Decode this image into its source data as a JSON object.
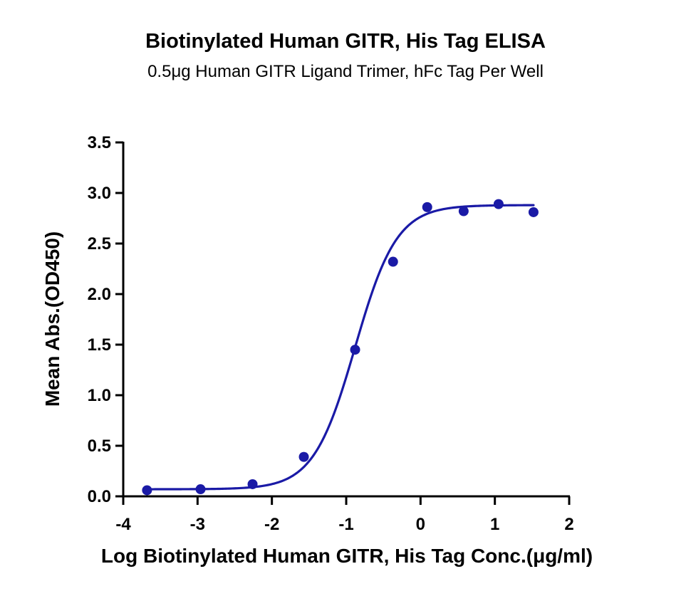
{
  "chart_data": {
    "type": "scatter",
    "title": "Biotinylated Human GITR, His Tag ELISA",
    "subtitle": "0.5μg Human GITR Ligand Trimer, hFc Tag Per Well",
    "xlabel": "Log Biotinylated Human GITR, His Tag Conc.(μg/ml)",
    "ylabel": "Mean Abs.(OD450)",
    "xlim": [
      -4,
      2
    ],
    "ylim": [
      0,
      3.5
    ],
    "xticks": [
      -4,
      -3,
      -2,
      -1,
      0,
      1,
      2
    ],
    "yticks": [
      0.0,
      0.5,
      1.0,
      1.5,
      2.0,
      2.5,
      3.0,
      3.5
    ],
    "xtick_labels": [
      "-4",
      "-3",
      "-2",
      "-1",
      "0",
      "1",
      "2"
    ],
    "ytick_labels": [
      "0.0",
      "0.5",
      "1.0",
      "1.5",
      "2.0",
      "2.5",
      "3.0",
      "3.5"
    ],
    "grid": false,
    "legend": "none",
    "color": "#1a1aa6",
    "points": [
      {
        "x": -3.68,
        "y": 0.06
      },
      {
        "x": -2.96,
        "y": 0.07
      },
      {
        "x": -2.26,
        "y": 0.12
      },
      {
        "x": -1.57,
        "y": 0.39
      },
      {
        "x": -0.88,
        "y": 1.45
      },
      {
        "x": -0.37,
        "y": 2.32
      },
      {
        "x": 0.09,
        "y": 2.86
      },
      {
        "x": 0.58,
        "y": 2.82
      },
      {
        "x": 1.05,
        "y": 2.89
      },
      {
        "x": 1.52,
        "y": 2.81
      }
    ],
    "fit": {
      "model": "4PL",
      "bottom": 0.07,
      "top": 2.88,
      "log_ec50": -0.88,
      "hill_slope": 1.55,
      "x_range": [
        -3.68,
        1.52
      ]
    }
  }
}
